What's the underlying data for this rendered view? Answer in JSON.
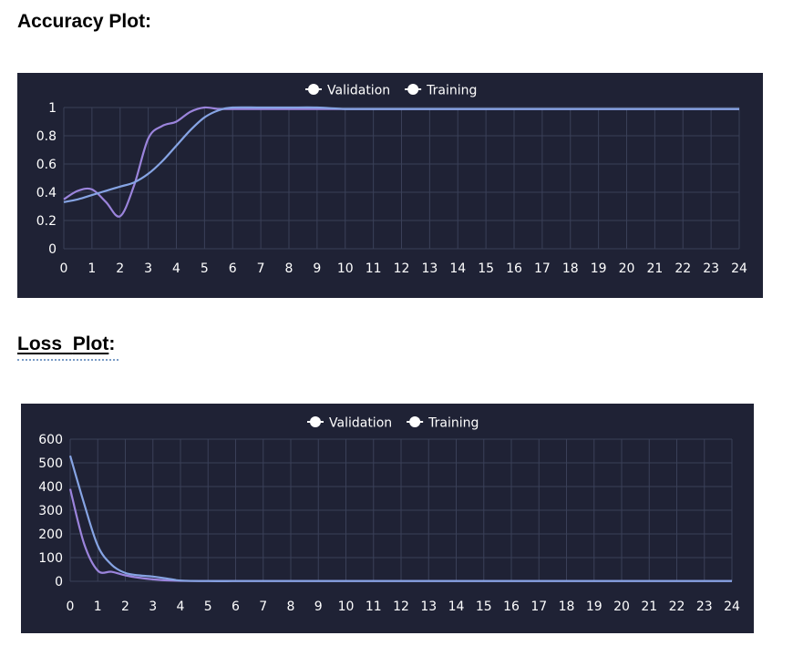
{
  "page": {
    "accuracy_heading": "Accuracy Plot:",
    "loss_heading_word1": "Loss",
    "loss_heading_word2": "Plot",
    "loss_heading_colon": ":"
  },
  "colors": {
    "panel_bg": "#1f2235",
    "grid": "#3a4058",
    "axis_text": "#ffffff",
    "validation_line": "#9b84dc",
    "training_line": "#86a4e4",
    "legend_marker": "#ffffff"
  },
  "chart_data": [
    {
      "type": "line",
      "title": "",
      "xlabel": "",
      "ylabel": "",
      "x_ticks": [
        "0",
        "1",
        "2",
        "3",
        "4",
        "5",
        "6",
        "7",
        "8",
        "9",
        "10",
        "11",
        "12",
        "13",
        "14",
        "15",
        "16",
        "17",
        "18",
        "19",
        "20",
        "21",
        "22",
        "23",
        "24"
      ],
      "y_ticks": [
        "0",
        "0.2",
        "0.4",
        "0.6",
        "0.8",
        "1"
      ],
      "xlim": [
        0,
        24
      ],
      "ylim": [
        0,
        1
      ],
      "grid": true,
      "legend_position": "top-center",
      "legend": [
        "Validation",
        "Training"
      ],
      "series": [
        {
          "name": "Validation",
          "x": [
            0,
            0.5,
            1,
            1.5,
            2,
            2.5,
            3,
            3.5,
            4,
            4.5,
            5,
            5.5,
            6,
            7,
            8,
            9,
            10,
            11,
            12,
            13,
            14,
            15,
            16,
            17,
            18,
            19,
            20,
            21,
            22,
            23,
            24
          ],
          "values": [
            0.35,
            0.41,
            0.42,
            0.33,
            0.23,
            0.45,
            0.78,
            0.87,
            0.9,
            0.97,
            1.0,
            0.99,
            0.99,
            0.99,
            0.99,
            0.99,
            0.99,
            0.99,
            0.99,
            0.99,
            0.99,
            0.99,
            0.99,
            0.99,
            0.99,
            0.99,
            0.99,
            0.99,
            0.99,
            0.99,
            0.99
          ]
        },
        {
          "name": "Training",
          "x": [
            0,
            0.5,
            1,
            1.5,
            2,
            2.5,
            3,
            3.5,
            4,
            4.5,
            5,
            5.5,
            6,
            7,
            8,
            9,
            10,
            11,
            12,
            13,
            14,
            15,
            16,
            17,
            18,
            19,
            20,
            21,
            22,
            23,
            24
          ],
          "values": [
            0.33,
            0.35,
            0.38,
            0.41,
            0.44,
            0.47,
            0.53,
            0.62,
            0.73,
            0.84,
            0.93,
            0.98,
            1.0,
            1.0,
            1.0,
            1.0,
            0.99,
            0.99,
            0.99,
            0.99,
            0.99,
            0.99,
            0.99,
            0.99,
            0.99,
            0.99,
            0.99,
            0.99,
            0.99,
            0.99,
            0.99
          ]
        }
      ]
    },
    {
      "type": "line",
      "title": "",
      "xlabel": "",
      "ylabel": "",
      "x_ticks": [
        "0",
        "1",
        "2",
        "3",
        "4",
        "5",
        "6",
        "7",
        "8",
        "9",
        "10",
        "11",
        "12",
        "13",
        "14",
        "15",
        "16",
        "17",
        "18",
        "19",
        "20",
        "21",
        "22",
        "23",
        "24"
      ],
      "y_ticks": [
        "0",
        "100",
        "200",
        "300",
        "400",
        "500",
        "600"
      ],
      "xlim": [
        0,
        24
      ],
      "ylim": [
        0,
        600
      ],
      "grid": true,
      "legend_position": "top-center",
      "legend": [
        "Validation",
        "Training"
      ],
      "series": [
        {
          "name": "Validation",
          "x": [
            0,
            0.5,
            1,
            1.5,
            2,
            2.5,
            3,
            3.5,
            4,
            5,
            6,
            7,
            8,
            9,
            10,
            11,
            12,
            13,
            14,
            15,
            16,
            17,
            18,
            19,
            20,
            21,
            22,
            23,
            24
          ],
          "values": [
            390,
            160,
            45,
            40,
            25,
            15,
            8,
            4,
            2,
            1,
            1,
            1,
            1,
            1,
            1,
            1,
            1,
            1,
            1,
            1,
            1,
            1,
            1,
            1,
            1,
            1,
            1,
            1,
            1
          ]
        },
        {
          "name": "Training",
          "x": [
            0,
            0.5,
            1,
            1.5,
            2,
            2.5,
            3,
            3.5,
            4,
            5,
            6,
            7,
            8,
            9,
            10,
            11,
            12,
            13,
            14,
            15,
            16,
            17,
            18,
            19,
            20,
            21,
            22,
            23,
            24
          ],
          "values": [
            530,
            330,
            150,
            70,
            35,
            25,
            20,
            12,
            3,
            1,
            1,
            1,
            1,
            1,
            1,
            1,
            1,
            1,
            1,
            1,
            1,
            1,
            1,
            1,
            1,
            1,
            1,
            1,
            1
          ]
        }
      ]
    }
  ]
}
